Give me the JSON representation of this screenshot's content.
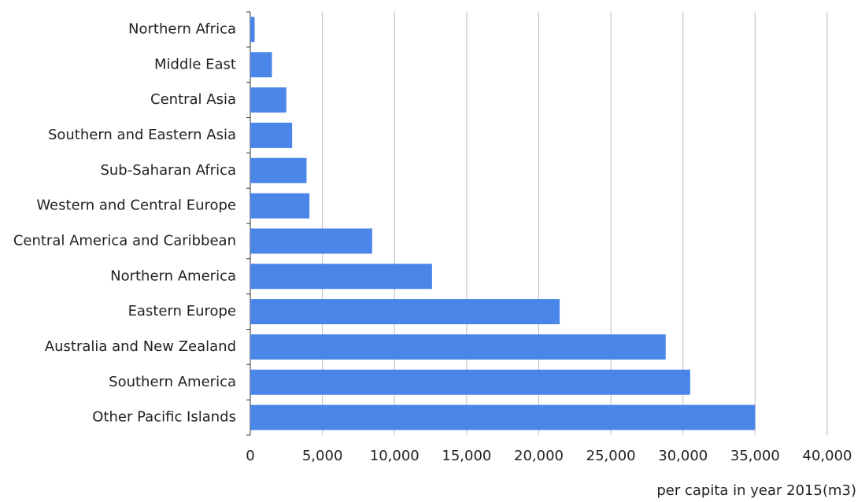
{
  "chart_data": {
    "type": "hbar",
    "categories": [
      "Northern Africa",
      "Middle East",
      "Central Asia",
      "Southern and Eastern Asia",
      "Sub-Saharan Africa",
      "Western and Central Europe",
      "Central America and Caribbean",
      "Northern America",
      "Eastern Europe",
      "Australia and New Zealand",
      "Southern America",
      "Other Pacific Islands"
    ],
    "values": [
      300,
      1500,
      2500,
      2900,
      3900,
      4100,
      8450,
      12600,
      21450,
      28800,
      30500,
      35000
    ],
    "color": "#4a86e8",
    "xlim": [
      0,
      40000
    ],
    "xticks": [
      0,
      {
        "value": 5000,
        "label": "5,000"
      },
      {
        "value": 10000,
        "label": "10,000"
      },
      {
        "value": 15000,
        "label": "15,000"
      },
      {
        "value": 20000,
        "label": "20,000"
      },
      {
        "value": 25000,
        "label": "25,000"
      },
      {
        "value": 30000,
        "label": "30,000"
      },
      {
        "value": 35000,
        "label": "35,000"
      },
      {
        "value": 40000,
        "label": "40,000"
      }
    ],
    "x_label": "per capita in year 2015(m3)",
    "grid": true
  }
}
